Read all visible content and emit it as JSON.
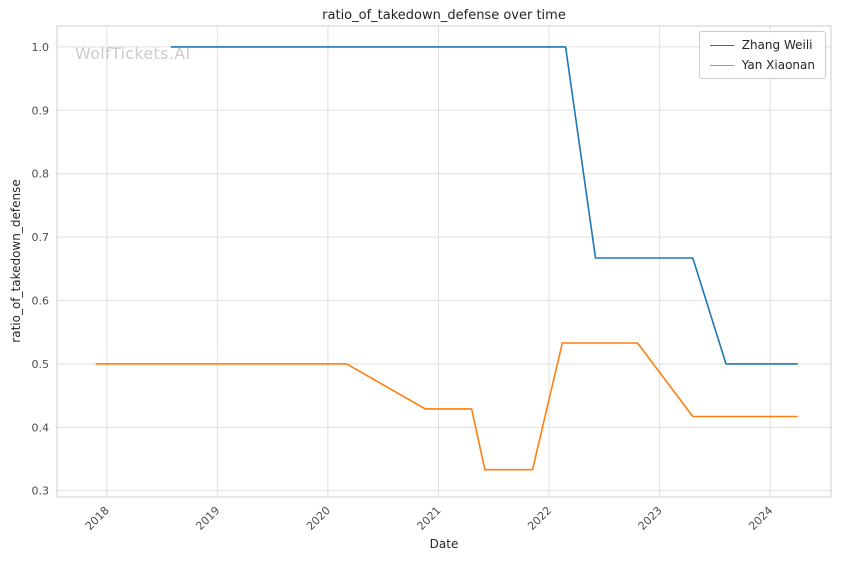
{
  "watermark": {
    "text": "WolfTickets.AI",
    "color": "#cccccc"
  },
  "chart_data": {
    "type": "line",
    "title": "ratio_of_takedown_defense over time",
    "xlabel": "Date",
    "ylabel": "ratio_of_takedown_defense",
    "xlim": [
      2017.55,
      2024.55
    ],
    "ylim": [
      0.29,
      1.033
    ],
    "xticks": [
      2018,
      2019,
      2020,
      2021,
      2022,
      2023,
      2024
    ],
    "yticks": [
      0.3,
      0.4,
      0.5,
      0.6,
      0.7,
      0.8,
      0.9,
      1.0
    ],
    "grid": true,
    "grid_color": "#e0e0e0",
    "border_color": "#cccccc",
    "tick_color": "#4d4d4d",
    "legend_position": "top-right",
    "series": [
      {
        "name": "Zhang Weili",
        "color": "#1f77b4",
        "points": [
          [
            2018.58,
            1.0
          ],
          [
            2022.15,
            1.0
          ],
          [
            2022.42,
            0.667
          ],
          [
            2023.3,
            0.667
          ],
          [
            2023.6,
            0.5
          ],
          [
            2024.25,
            0.5
          ]
        ]
      },
      {
        "name": "Yan Xiaonan",
        "color": "#ff7f0e",
        "points": [
          [
            2017.9,
            0.5
          ],
          [
            2020.17,
            0.5
          ],
          [
            2020.88,
            0.429
          ],
          [
            2021.3,
            0.429
          ],
          [
            2021.42,
            0.333
          ],
          [
            2021.85,
            0.333
          ],
          [
            2022.12,
            0.533
          ],
          [
            2022.8,
            0.533
          ],
          [
            2023.3,
            0.417
          ],
          [
            2024.25,
            0.417
          ]
        ]
      }
    ]
  }
}
